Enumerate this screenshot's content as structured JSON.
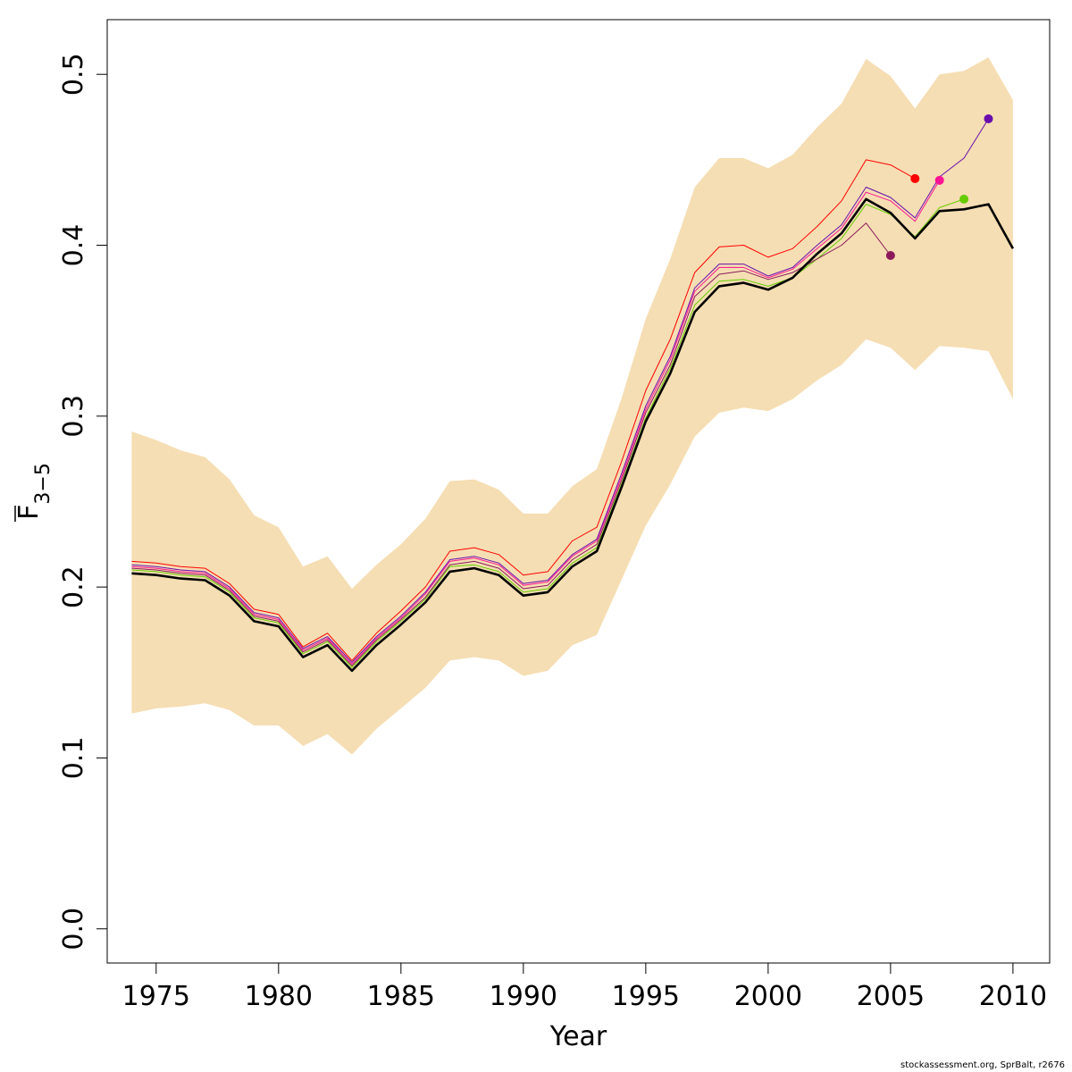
{
  "chart_data": {
    "type": "line",
    "xlabel": "Year",
    "ylabel_main": "F",
    "ylabel_sub": "3−5",
    "xlim": [
      1973,
      2011.5
    ],
    "ylim": [
      -0.02,
      0.532
    ],
    "xticks": [
      1975,
      1980,
      1985,
      1990,
      1995,
      2000,
      2005,
      2010
    ],
    "yticks": [
      0.0,
      0.1,
      0.2,
      0.3,
      0.4,
      0.5
    ],
    "ytick_labels": [
      "0.0",
      "0.1",
      "0.2",
      "0.3",
      "0.4",
      "0.5"
    ],
    "grid": false,
    "band_color": "#F5DEB3",
    "band": {
      "x": [
        1974,
        1975,
        1976,
        1977,
        1978,
        1979,
        1980,
        1981,
        1982,
        1983,
        1984,
        1985,
        1986,
        1987,
        1988,
        1989,
        1990,
        1991,
        1992,
        1993,
        1994,
        1995,
        1996,
        1997,
        1998,
        1999,
        2000,
        2001,
        2002,
        2003,
        2004,
        2005,
        2006,
        2007,
        2008,
        2009,
        2010
      ],
      "upper": [
        0.291,
        0.286,
        0.28,
        0.276,
        0.263,
        0.242,
        0.235,
        0.212,
        0.218,
        0.199,
        0.213,
        0.225,
        0.24,
        0.262,
        0.263,
        0.257,
        0.243,
        0.243,
        0.259,
        0.269,
        0.31,
        0.357,
        0.392,
        0.434,
        0.451,
        0.451,
        0.445,
        0.453,
        0.469,
        0.483,
        0.509,
        0.499,
        0.48,
        0.5,
        0.502,
        0.51,
        0.485
      ],
      "lower": [
        0.126,
        0.129,
        0.13,
        0.132,
        0.128,
        0.119,
        0.119,
        0.107,
        0.114,
        0.102,
        0.117,
        0.129,
        0.141,
        0.157,
        0.159,
        0.157,
        0.148,
        0.151,
        0.166,
        0.172,
        0.204,
        0.236,
        0.26,
        0.288,
        0.302,
        0.305,
        0.303,
        0.31,
        0.321,
        0.33,
        0.345,
        0.34,
        0.327,
        0.341,
        0.34,
        0.338,
        0.31
      ]
    },
    "series": [
      {
        "color": "#000000",
        "width": 2.6,
        "x": [
          1974,
          1975,
          1976,
          1977,
          1978,
          1979,
          1980,
          1981,
          1982,
          1983,
          1984,
          1985,
          1986,
          1987,
          1988,
          1989,
          1990,
          1991,
          1992,
          1993,
          1994,
          1995,
          1996,
          1997,
          1998,
          1999,
          2000,
          2001,
          2002,
          2003,
          2004,
          2005,
          2006,
          2007,
          2008,
          2009,
          2010
        ],
        "y": [
          0.208,
          0.207,
          0.205,
          0.204,
          0.195,
          0.18,
          0.177,
          0.159,
          0.166,
          0.151,
          0.166,
          0.178,
          0.191,
          0.209,
          0.211,
          0.207,
          0.195,
          0.197,
          0.212,
          0.221,
          0.258,
          0.297,
          0.325,
          0.361,
          0.376,
          0.378,
          0.374,
          0.381,
          0.395,
          0.407,
          0.427,
          0.419,
          0.404,
          0.42,
          0.421,
          0.424,
          0.398
        ],
        "end_marker": false
      },
      {
        "color": "#66CC00",
        "width": 1,
        "x": [
          1974,
          1975,
          1976,
          1977,
          1978,
          1979,
          1980,
          1981,
          1982,
          1983,
          1984,
          1985,
          1986,
          1987,
          1988,
          1989,
          1990,
          1991,
          1992,
          1993,
          1994,
          1995,
          1996,
          1997,
          1998,
          1999,
          2000,
          2001,
          2002,
          2003,
          2004,
          2005,
          2006,
          2007,
          2008
        ],
        "y": [
          0.21,
          0.209,
          0.207,
          0.206,
          0.197,
          0.182,
          0.179,
          0.161,
          0.168,
          0.153,
          0.168,
          0.18,
          0.193,
          0.212,
          0.213,
          0.209,
          0.197,
          0.199,
          0.214,
          0.223,
          0.26,
          0.299,
          0.328,
          0.365,
          0.379,
          0.38,
          0.376,
          0.381,
          0.392,
          0.404,
          0.424,
          0.418,
          0.405,
          0.422,
          0.427
        ],
        "end_marker": true
      },
      {
        "color": "#8B1A5C",
        "width": 1,
        "x": [
          1974,
          1975,
          1976,
          1977,
          1978,
          1979,
          1980,
          1981,
          1982,
          1983,
          1984,
          1985,
          1986,
          1987,
          1988,
          1989,
          1990,
          1991,
          1992,
          1993,
          1994,
          1995,
          1996,
          1997,
          1998,
          1999,
          2000,
          2001,
          2002,
          2003,
          2004,
          2005
        ],
        "y": [
          0.211,
          0.21,
          0.208,
          0.207,
          0.198,
          0.183,
          0.18,
          0.162,
          0.169,
          0.154,
          0.169,
          0.181,
          0.194,
          0.213,
          0.215,
          0.211,
          0.199,
          0.201,
          0.216,
          0.225,
          0.262,
          0.302,
          0.33,
          0.37,
          0.383,
          0.385,
          0.38,
          0.384,
          0.392,
          0.4,
          0.413,
          0.394
        ],
        "end_marker": true
      },
      {
        "color": "#FF1493",
        "width": 1,
        "x": [
          1974,
          1975,
          1976,
          1977,
          1978,
          1979,
          1980,
          1981,
          1982,
          1983,
          1984,
          1985,
          1986,
          1987,
          1988,
          1989,
          1990,
          1991,
          1992,
          1993,
          1994,
          1995,
          1996,
          1997,
          1998,
          1999,
          2000,
          2001,
          2002,
          2003,
          2004,
          2005,
          2006,
          2007
        ],
        "y": [
          0.212,
          0.211,
          0.209,
          0.208,
          0.199,
          0.184,
          0.181,
          0.163,
          0.17,
          0.155,
          0.17,
          0.182,
          0.196,
          0.215,
          0.217,
          0.213,
          0.201,
          0.203,
          0.218,
          0.227,
          0.264,
          0.304,
          0.333,
          0.373,
          0.387,
          0.387,
          0.381,
          0.386,
          0.398,
          0.41,
          0.431,
          0.426,
          0.414,
          0.438
        ],
        "end_marker": true
      },
      {
        "color": "#6A0DAD",
        "width": 1,
        "x": [
          1974,
          1975,
          1976,
          1977,
          1978,
          1979,
          1980,
          1981,
          1982,
          1983,
          1984,
          1985,
          1986,
          1987,
          1988,
          1989,
          1990,
          1991,
          1992,
          1993,
          1994,
          1995,
          1996,
          1997,
          1998,
          1999,
          2000,
          2001,
          2002,
          2003,
          2004,
          2005,
          2006,
          2007,
          2008,
          2009
        ],
        "y": [
          0.213,
          0.212,
          0.21,
          0.209,
          0.2,
          0.185,
          0.182,
          0.164,
          0.171,
          0.156,
          0.171,
          0.183,
          0.197,
          0.216,
          0.218,
          0.214,
          0.202,
          0.204,
          0.219,
          0.228,
          0.266,
          0.306,
          0.335,
          0.375,
          0.389,
          0.389,
          0.382,
          0.387,
          0.4,
          0.412,
          0.434,
          0.428,
          0.416,
          0.44,
          0.451,
          0.474
        ],
        "end_marker": true
      },
      {
        "color": "#FF0000",
        "width": 1,
        "x": [
          1974,
          1975,
          1976,
          1977,
          1978,
          1979,
          1980,
          1981,
          1982,
          1983,
          1984,
          1985,
          1986,
          1987,
          1988,
          1989,
          1990,
          1991,
          1992,
          1993,
          1994,
          1995,
          1996,
          1997,
          1998,
          1999,
          2000,
          2001,
          2002,
          2003,
          2004,
          2005,
          2006
        ],
        "y": [
          0.215,
          0.214,
          0.212,
          0.211,
          0.202,
          0.187,
          0.184,
          0.165,
          0.173,
          0.157,
          0.173,
          0.186,
          0.2,
          0.221,
          0.223,
          0.219,
          0.207,
          0.209,
          0.227,
          0.235,
          0.273,
          0.315,
          0.345,
          0.384,
          0.399,
          0.4,
          0.393,
          0.398,
          0.411,
          0.426,
          0.45,
          0.447,
          0.439
        ],
        "end_marker": true
      }
    ]
  },
  "credit": "stockassessment.org, SprBalt, r2676"
}
